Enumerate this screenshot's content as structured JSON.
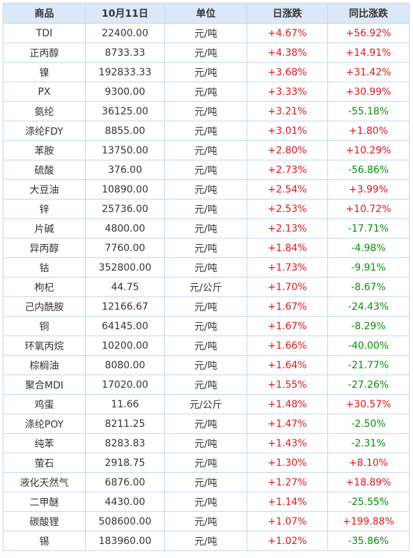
{
  "header": {
    "product": "商品",
    "date": "10月11日",
    "unit": "单位",
    "daily_change": "日涨跌",
    "yoy_change": "同比涨跌"
  },
  "colors": {
    "up": "#e0151b",
    "down": "#0b8a0b",
    "header_bg": "#dbe8f7",
    "border": "#c6d6ea"
  },
  "rows": [
    {
      "name": "TDI",
      "price": "22400.00",
      "unit": "元/吨",
      "daily": "+4.67%",
      "yoy": "+56.92%"
    },
    {
      "name": "正丙醇",
      "price": "8733.33",
      "unit": "元/吨",
      "daily": "+4.38%",
      "yoy": "+14.91%"
    },
    {
      "name": "镍",
      "price": "192833.33",
      "unit": "元/吨",
      "daily": "+3.68%",
      "yoy": "+31.42%"
    },
    {
      "name": "PX",
      "price": "9300.00",
      "unit": "元/吨",
      "daily": "+3.33%",
      "yoy": "+30.99%"
    },
    {
      "name": "氨纶",
      "price": "36125.00",
      "unit": "元/吨",
      "daily": "+3.21%",
      "yoy": "-55.18%"
    },
    {
      "name": "涤纶FDY",
      "price": "8855.00",
      "unit": "元/吨",
      "daily": "+3.01%",
      "yoy": "+1.80%"
    },
    {
      "name": "苯胺",
      "price": "13750.00",
      "unit": "元/吨",
      "daily": "+2.80%",
      "yoy": "+10.29%"
    },
    {
      "name": "硫酸",
      "price": "376.00",
      "unit": "元/吨",
      "daily": "+2.73%",
      "yoy": "-56.86%"
    },
    {
      "name": "大豆油",
      "price": "10890.00",
      "unit": "元/吨",
      "daily": "+2.54%",
      "yoy": "+3.99%"
    },
    {
      "name": "锌",
      "price": "25736.00",
      "unit": "元/吨",
      "daily": "+2.53%",
      "yoy": "+10.72%"
    },
    {
      "name": "片碱",
      "price": "4800.00",
      "unit": "元/吨",
      "daily": "+2.13%",
      "yoy": "-17.71%"
    },
    {
      "name": "异丙醇",
      "price": "7760.00",
      "unit": "元/吨",
      "daily": "+1.84%",
      "yoy": "-4.98%"
    },
    {
      "name": "钴",
      "price": "352800.00",
      "unit": "元/吨",
      "daily": "+1.73%",
      "yoy": "-9.91%"
    },
    {
      "name": "枸杞",
      "price": "44.75",
      "unit": "元/公斤",
      "daily": "+1.70%",
      "yoy": "-8.67%"
    },
    {
      "name": "己内酰胺",
      "price": "12166.67",
      "unit": "元/吨",
      "daily": "+1.67%",
      "yoy": "-24.43%"
    },
    {
      "name": "铜",
      "price": "64145.00",
      "unit": "元/吨",
      "daily": "+1.67%",
      "yoy": "-8.29%"
    },
    {
      "name": "环氧丙烷",
      "price": "10200.00",
      "unit": "元/吨",
      "daily": "+1.66%",
      "yoy": "-40.00%"
    },
    {
      "name": "棕榈油",
      "price": "8080.00",
      "unit": "元/吨",
      "daily": "+1.64%",
      "yoy": "-21.77%"
    },
    {
      "name": "聚合MDI",
      "price": "17020.00",
      "unit": "元/吨",
      "daily": "+1.55%",
      "yoy": "-27.26%"
    },
    {
      "name": "鸡蛋",
      "price": "11.66",
      "unit": "元/公斤",
      "daily": "+1.48%",
      "yoy": "+30.57%"
    },
    {
      "name": "涤纶POY",
      "price": "8211.25",
      "unit": "元/吨",
      "daily": "+1.47%",
      "yoy": "-2.50%"
    },
    {
      "name": "纯苯",
      "price": "8283.83",
      "unit": "元/吨",
      "daily": "+1.43%",
      "yoy": "-2.31%"
    },
    {
      "name": "萤石",
      "price": "2918.75",
      "unit": "元/吨",
      "daily": "+1.30%",
      "yoy": "+8.10%"
    },
    {
      "name": "液化天然气",
      "price": "6876.00",
      "unit": "元/吨",
      "daily": "+1.27%",
      "yoy": "+18.89%"
    },
    {
      "name": "二甲醚",
      "price": "4430.00",
      "unit": "元/吨",
      "daily": "+1.14%",
      "yoy": "-25.55%"
    },
    {
      "name": "碳酸锂",
      "price": "508600.00",
      "unit": "元/吨",
      "daily": "+1.07%",
      "yoy": "+199.88%"
    },
    {
      "name": "锡",
      "price": "183960.00",
      "unit": "元/吨",
      "daily": "+1.02%",
      "yoy": "-35.86%"
    }
  ]
}
